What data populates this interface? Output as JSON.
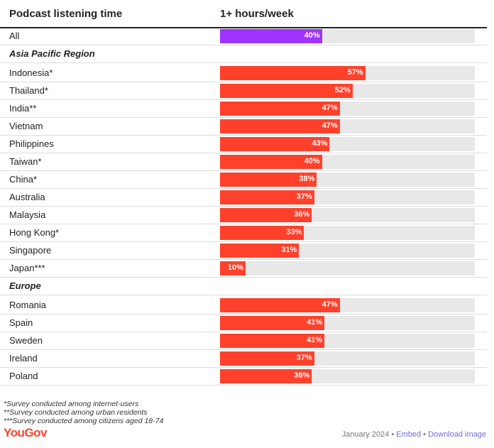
{
  "header": {
    "col_category": "Podcast listening time",
    "col_value": "1+ hours/week"
  },
  "colors": {
    "all_bar": "#a033ff",
    "bar": "#ff412c",
    "track": "#e8e8e8"
  },
  "chart_data": {
    "type": "bar",
    "orientation": "horizontal",
    "xlim": [
      0,
      100
    ],
    "value_unit": "%",
    "rows": [
      {
        "kind": "row",
        "label": "All",
        "value": 40,
        "highlight": true
      },
      {
        "kind": "group",
        "label": "Asia Pacific Region"
      },
      {
        "kind": "row",
        "label": "Indonesia*",
        "value": 57
      },
      {
        "kind": "row",
        "label": "Thailand*",
        "value": 52
      },
      {
        "kind": "row",
        "label": "India**",
        "value": 47
      },
      {
        "kind": "row",
        "label": "Vietnam",
        "value": 47
      },
      {
        "kind": "row",
        "label": "Philippines",
        "value": 43
      },
      {
        "kind": "row",
        "label": "Taiwan*",
        "value": 40
      },
      {
        "kind": "row",
        "label": "China*",
        "value": 38
      },
      {
        "kind": "row",
        "label": "Australia",
        "value": 37
      },
      {
        "kind": "row",
        "label": "Malaysia",
        "value": 36
      },
      {
        "kind": "row",
        "label": "Hong Kong*",
        "value": 33
      },
      {
        "kind": "row",
        "label": "Singapore",
        "value": 31
      },
      {
        "kind": "row",
        "label": "Japan***",
        "value": 10
      },
      {
        "kind": "group",
        "label": "Europe"
      },
      {
        "kind": "row",
        "label": "Romania",
        "value": 47
      },
      {
        "kind": "row",
        "label": "Spain",
        "value": 41
      },
      {
        "kind": "row",
        "label": "Sweden",
        "value": 41
      },
      {
        "kind": "row",
        "label": "Ireland",
        "value": 37
      },
      {
        "kind": "row",
        "label": "Poland",
        "value": 36
      }
    ]
  },
  "notes": [
    "*Survey conducted among internet-users",
    "**Survey conducted among urban residents",
    "***Survey conducted among citizens aged 18-74"
  ],
  "brand": "YouGov",
  "footer": {
    "date": "January 2024",
    "separator": " • ",
    "embed": "Embed",
    "download": "Download image"
  }
}
